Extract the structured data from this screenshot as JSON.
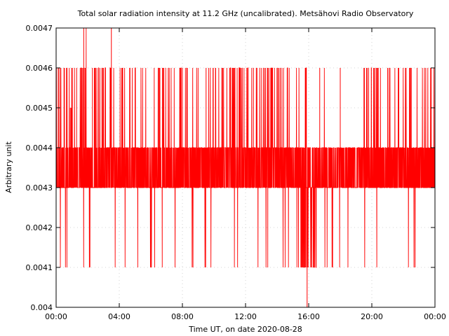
{
  "chart_data": {
    "type": "line",
    "title": "Total solar radiation intensity at 11.2 GHz (uncalibrated). Metsähovi Radio Observatory",
    "xlabel": "Time UT, on date 2020-08-28",
    "ylabel": "Arbitrary unit",
    "xlim": [
      0,
      24
    ],
    "ylim": [
      0.004,
      0.0047
    ],
    "grid": true,
    "x_ticks": [
      {
        "value": 0,
        "label": "00:00"
      },
      {
        "value": 4,
        "label": "04:00"
      },
      {
        "value": 8,
        "label": "08:00"
      },
      {
        "value": 12,
        "label": "12:00"
      },
      {
        "value": 16,
        "label": "16:00"
      },
      {
        "value": 20,
        "label": "20:00"
      },
      {
        "value": 24,
        "label": "00:00"
      }
    ],
    "y_ticks": [
      {
        "value": 0.004,
        "label": "0.004"
      },
      {
        "value": 0.0041,
        "label": "0.0041"
      },
      {
        "value": 0.0042,
        "label": "0.0042"
      },
      {
        "value": 0.0043,
        "label": "0.0043"
      },
      {
        "value": 0.0044,
        "label": "0.0044"
      },
      {
        "value": 0.0045,
        "label": "0.0045"
      },
      {
        "value": 0.0046,
        "label": "0.0046"
      },
      {
        "value": 0.0047,
        "label": "0.0047"
      }
    ],
    "series": [
      {
        "color": "#ff0000",
        "x": [
          0.0,
          0.15,
          0.3,
          0.5,
          0.7,
          0.9,
          1.1,
          1.3,
          1.5,
          1.75,
          2.0,
          2.3,
          2.6,
          2.9,
          3.2,
          3.5,
          3.8,
          4.2,
          4.6,
          5.0,
          5.5,
          6.0,
          6.5,
          7.0,
          7.5,
          8.0,
          8.5,
          9.0,
          9.5,
          10.0,
          10.5,
          11.0,
          11.5,
          12.0,
          12.5,
          13.0,
          13.5,
          14.0,
          14.5,
          15.0,
          15.5,
          15.9,
          16.3,
          16.7,
          17.0,
          17.5,
          18.0,
          18.5,
          19.0,
          19.5,
          20.0,
          20.5,
          21.0,
          21.5,
          22.0,
          22.5,
          23.0,
          23.5,
          24.0
        ],
        "y": [
          0.0044,
          0.0046,
          0.0043,
          0.0046,
          0.0043,
          0.0045,
          0.0044,
          0.0046,
          0.0043,
          0.0047,
          0.0044,
          0.0046,
          0.0043,
          0.0046,
          0.0044,
          0.0047,
          0.0043,
          0.0046,
          0.0043,
          0.0046,
          0.0044,
          0.0043,
          0.0046,
          0.0044,
          0.0043,
          0.0046,
          0.0044,
          0.0043,
          0.0046,
          0.0044,
          0.0043,
          0.0046,
          0.0044,
          0.0043,
          0.0046,
          0.0044,
          0.0043,
          0.0046,
          0.0044,
          0.0043,
          0.0044,
          0.004,
          0.0043,
          0.0046,
          0.0044,
          0.0043,
          0.0046,
          0.0044,
          0.0043,
          0.0046,
          0.0044,
          0.0043,
          0.0046,
          0.0044,
          0.0043,
          0.0046,
          0.0044,
          0.0043,
          0.0044
        ]
      }
    ]
  }
}
